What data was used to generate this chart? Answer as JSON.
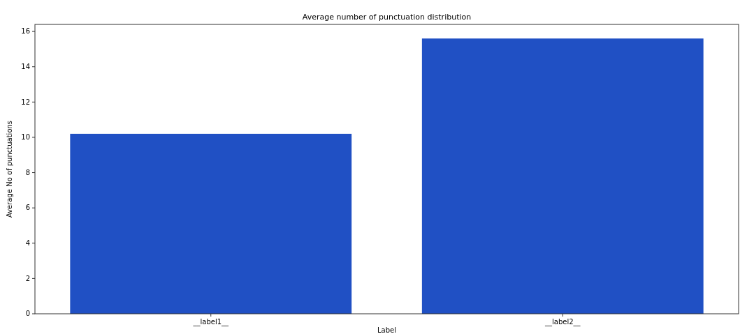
{
  "chart_data": {
    "type": "bar",
    "title": "Average number of punctuation distribution",
    "xlabel": "Label",
    "ylabel": "Average No of punctuations",
    "categories": [
      "__label1__",
      "__label2__"
    ],
    "values": [
      10.2,
      15.6
    ],
    "color": "#2050c4",
    "ylim": [
      0,
      16.4
    ],
    "yticks": [
      0,
      2,
      4,
      6,
      8,
      10,
      12,
      14,
      16
    ],
    "grid": false
  }
}
